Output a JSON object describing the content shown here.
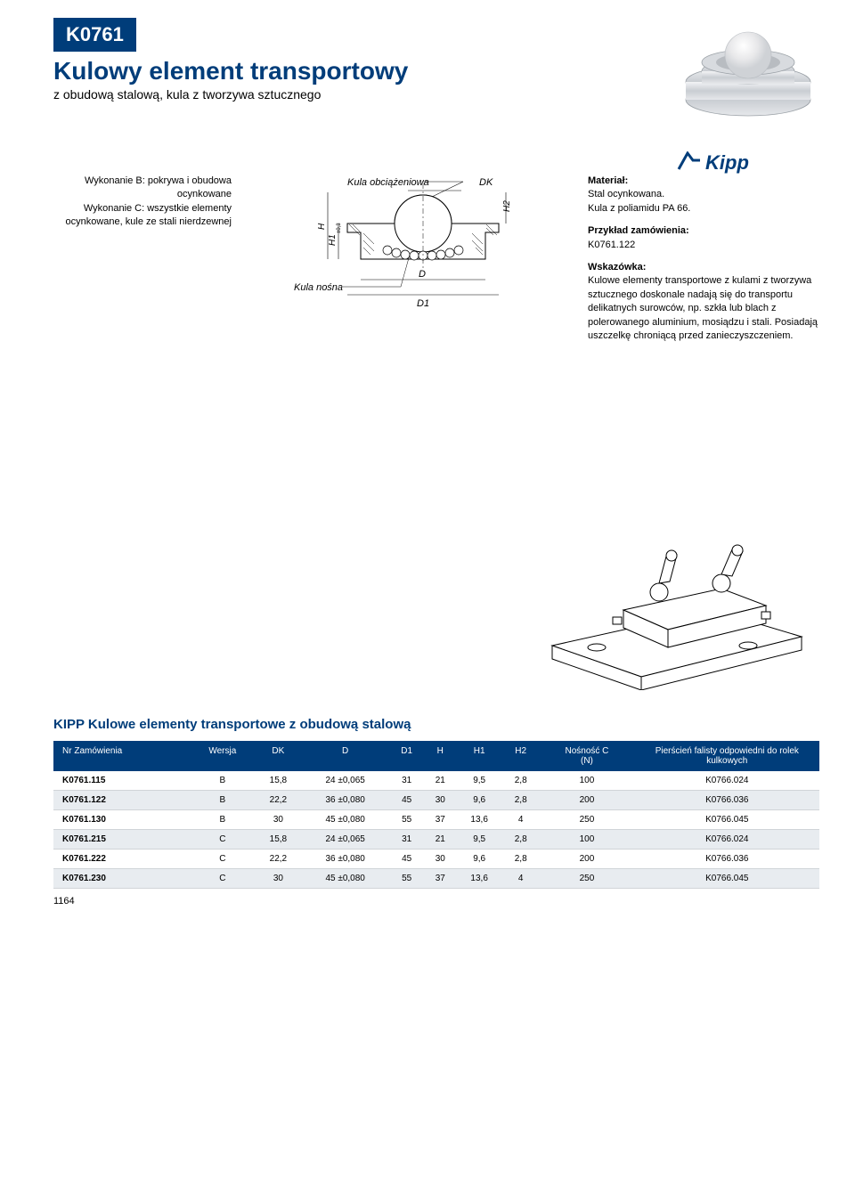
{
  "header": {
    "part_number": "K0761",
    "title": "Kulowy element transportowy",
    "subtitle": "z obudową stalową, kula z tworzywa sztucznego",
    "brand": "Kipp"
  },
  "left_column": {
    "wykonanie_b": "Wykonanie B: pokrywa i obudowa ocynkowane",
    "wykonanie_c": "Wykonanie C: wszystkie elementy ocynkowane, kule ze stali nierdzewnej"
  },
  "diagram": {
    "label_top": "Kula obciążeniowa",
    "label_bottom": "Kula nośna",
    "dim_dk": "DK",
    "dim_h2": "H2",
    "dim_h": "H",
    "dim_h1": "H1",
    "dim_h1_tol": "±0,3",
    "dim_d": "D",
    "dim_d1": "D1"
  },
  "right_column": {
    "material_label": "Materiał:",
    "material_text": "Stal ocynkowana.\nKula z poliamidu PA 66.",
    "order_label": "Przykład zamówienia:",
    "order_text": "K0761.122",
    "hint_label": "Wskazówka:",
    "hint_text": "Kulowe elementy transportowe z kulami z tworzywa sztucznego doskonale nadają się do transportu delikatnych surowców, np. szkła lub blach z polerowanego aluminium, mosiądzu i stali. Posiadają uszczelkę chroniącą przed zanieczyszczeniem."
  },
  "table": {
    "title": "KIPP Kulowe elementy transportowe z obudową stalową",
    "columns": [
      "Nr Zamówienia",
      "Wersja",
      "DK",
      "D",
      "D1",
      "H",
      "H1",
      "H2",
      "Nośność C\n(N)",
      "Pierścień falisty odpowiedni do rolek kulkowych"
    ],
    "rows": [
      [
        "K0761.115",
        "B",
        "15,8",
        "24 ±0,065",
        "31",
        "21",
        "9,5",
        "2,8",
        "100",
        "K0766.024"
      ],
      [
        "K0761.122",
        "B",
        "22,2",
        "36 ±0,080",
        "45",
        "30",
        "9,6",
        "2,8",
        "200",
        "K0766.036"
      ],
      [
        "K0761.130",
        "B",
        "30",
        "45 ±0,080",
        "55",
        "37",
        "13,6",
        "4",
        "250",
        "K0766.045"
      ],
      [
        "K0761.215",
        "C",
        "15,8",
        "24 ±0,065",
        "31",
        "21",
        "9,5",
        "2,8",
        "100",
        "K0766.024"
      ],
      [
        "K0761.222",
        "C",
        "22,2",
        "36 ±0,080",
        "45",
        "30",
        "9,6",
        "2,8",
        "200",
        "K0766.036"
      ],
      [
        "K0761.230",
        "C",
        "30",
        "45 ±0,080",
        "55",
        "37",
        "13,6",
        "4",
        "250",
        "K0766.045"
      ]
    ]
  },
  "footer": {
    "page_number": "1164"
  },
  "colors": {
    "brand_blue": "#003d7a",
    "row_alt": "#e8ecf0",
    "border": "#d0d4d8"
  }
}
